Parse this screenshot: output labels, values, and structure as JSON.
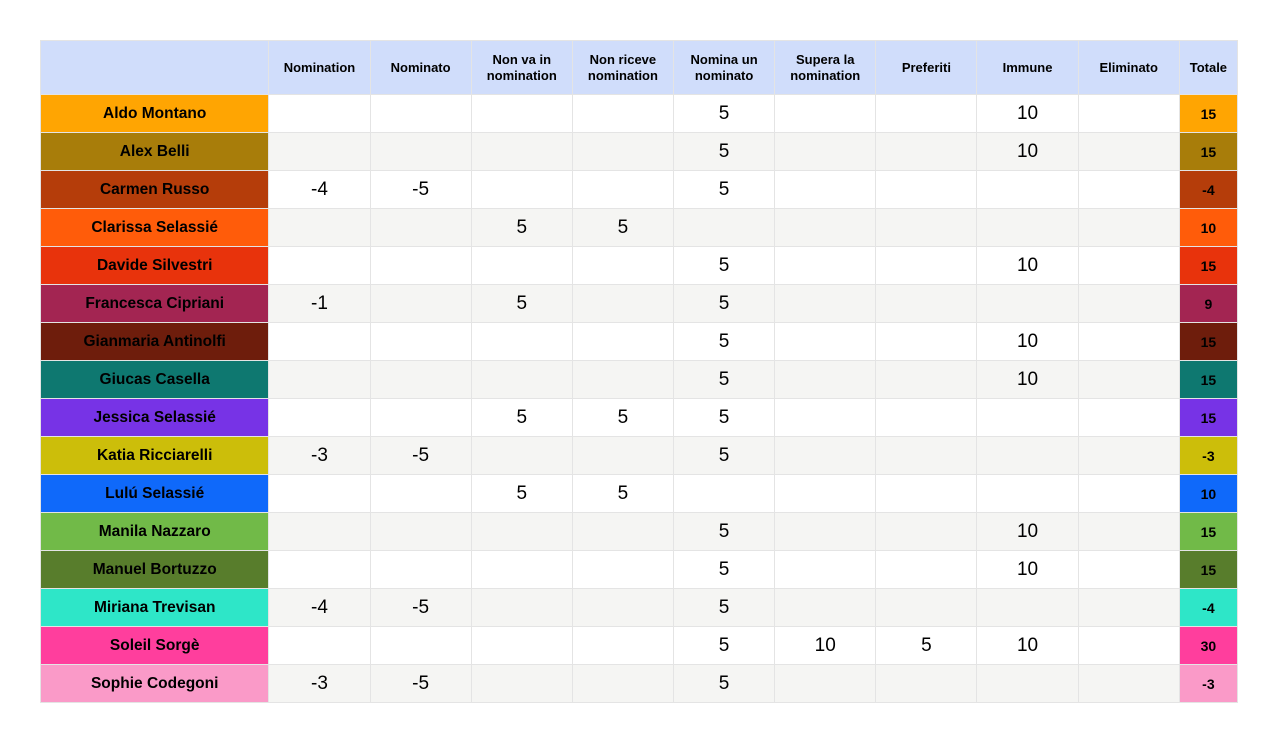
{
  "chart_data": {
    "type": "table",
    "title": "",
    "corner_label": "",
    "header": [
      "Nomination",
      "Nominato",
      "Non va in nomination",
      "Non riceve nomination",
      "Nomina un nominato",
      "Supera la nomination",
      "Preferiti",
      "Immune",
      "Eliminato",
      "Totale"
    ],
    "header_bg": "#d0ddfb",
    "stripe_colors": {
      "odd": "#ffffff",
      "even": "#f5f5f3"
    },
    "rows": [
      {
        "name": "Aldo Montano",
        "color": "#ffa502",
        "values": [
          "",
          "",
          "",
          "",
          "5",
          "",
          "",
          "10",
          ""
        ],
        "total": "15"
      },
      {
        "name": "Alex Belli",
        "color": "#a87d0a",
        "values": [
          "",
          "",
          "",
          "",
          "5",
          "",
          "",
          "10",
          ""
        ],
        "total": "15"
      },
      {
        "name": "Carmen Russo",
        "color": "#b53d0a",
        "values": [
          "-4",
          "-5",
          "",
          "",
          "5",
          "",
          "",
          "",
          ""
        ],
        "total": "-4"
      },
      {
        "name": "Clarissa Selassié",
        "color": "#ff5c0a",
        "values": [
          "",
          "",
          "5",
          "5",
          "",
          "",
          "",
          "",
          ""
        ],
        "total": "10"
      },
      {
        "name": "Davide Silvestri",
        "color": "#e8330c",
        "values": [
          "",
          "",
          "",
          "",
          "5",
          "",
          "",
          "10",
          ""
        ],
        "total": "15"
      },
      {
        "name": "Francesca Cipriani",
        "color": "#a32552",
        "values": [
          "-1",
          "",
          "5",
          "",
          "5",
          "",
          "",
          "",
          ""
        ],
        "total": "9"
      },
      {
        "name": "Gianmaria Antinolfi",
        "color": "#6e1d0c",
        "values": [
          "",
          "",
          "",
          "",
          "5",
          "",
          "",
          "10",
          ""
        ],
        "total": "15"
      },
      {
        "name": "Giucas Casella",
        "color": "#0e7870",
        "values": [
          "",
          "",
          "",
          "",
          "5",
          "",
          "",
          "10",
          ""
        ],
        "total": "15"
      },
      {
        "name": "Jessica Selassié",
        "color": "#7733e6",
        "values": [
          "",
          "",
          "5",
          "5",
          "5",
          "",
          "",
          "",
          ""
        ],
        "total": "15"
      },
      {
        "name": "Katia Ricciarelli",
        "color": "#ccbe0a",
        "values": [
          "-3",
          "-5",
          "",
          "",
          "5",
          "",
          "",
          "",
          ""
        ],
        "total": "-3"
      },
      {
        "name": "Lulú Selassié",
        "color": "#0f69fa",
        "values": [
          "",
          "",
          "5",
          "5",
          "",
          "",
          "",
          "",
          ""
        ],
        "total": "10"
      },
      {
        "name": "Manila Nazzaro",
        "color": "#71ba48",
        "values": [
          "",
          "",
          "",
          "",
          "5",
          "",
          "",
          "10",
          ""
        ],
        "total": "15"
      },
      {
        "name": "Manuel Bortuzzo",
        "color": "#587d2c",
        "values": [
          "",
          "",
          "",
          "",
          "5",
          "",
          "",
          "10",
          ""
        ],
        "total": "15"
      },
      {
        "name": "Miriana Trevisan",
        "color": "#2ee6c8",
        "values": [
          "-4",
          "-5",
          "",
          "",
          "5",
          "",
          "",
          "",
          ""
        ],
        "total": "-4"
      },
      {
        "name": "Soleil Sorgè",
        "color": "#ff3e9d",
        "values": [
          "",
          "",
          "",
          "",
          "5",
          "10",
          "5",
          "10",
          ""
        ],
        "total": "30"
      },
      {
        "name": "Sophie Codegoni",
        "color": "#fa9ac8",
        "values": [
          "-3",
          "-5",
          "",
          "",
          "5",
          "",
          "",
          "",
          ""
        ],
        "total": "-3"
      }
    ]
  }
}
